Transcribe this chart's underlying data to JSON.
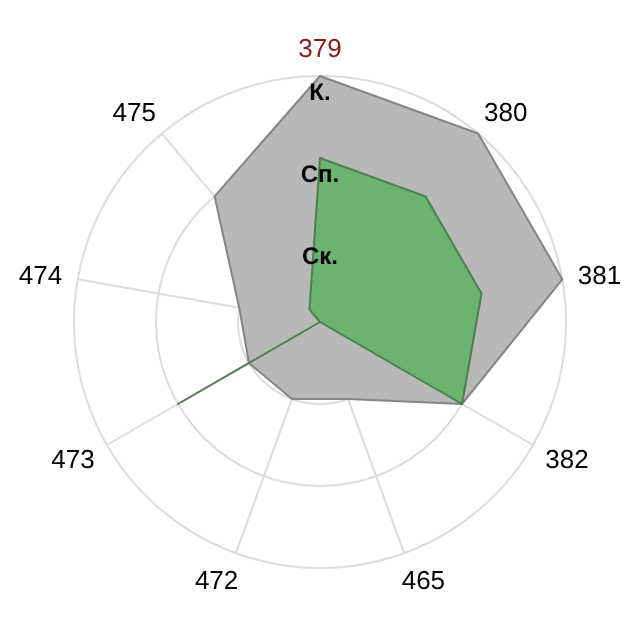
{
  "chart_data": {
    "type": "radar",
    "categories": [
      "379",
      "380",
      "381",
      "382",
      "465",
      "472",
      "473",
      "474",
      "475"
    ],
    "ylim": [
      0,
      3
    ],
    "yticks": [
      {
        "value": 1,
        "label": "Ск."
      },
      {
        "value": 2,
        "label": "Сп."
      },
      {
        "value": 3,
        "label": "К."
      }
    ],
    "grid": true,
    "series": [
      {
        "color": "#b8b8b8",
        "values": [
          3,
          3,
          3,
          2,
          1,
          1,
          1,
          1,
          2
        ]
      },
      {
        "color": "#66b26a",
        "values": [
          2,
          2,
          2,
          2,
          0,
          0,
          2,
          0,
          0.2
        ]
      }
    ]
  }
}
